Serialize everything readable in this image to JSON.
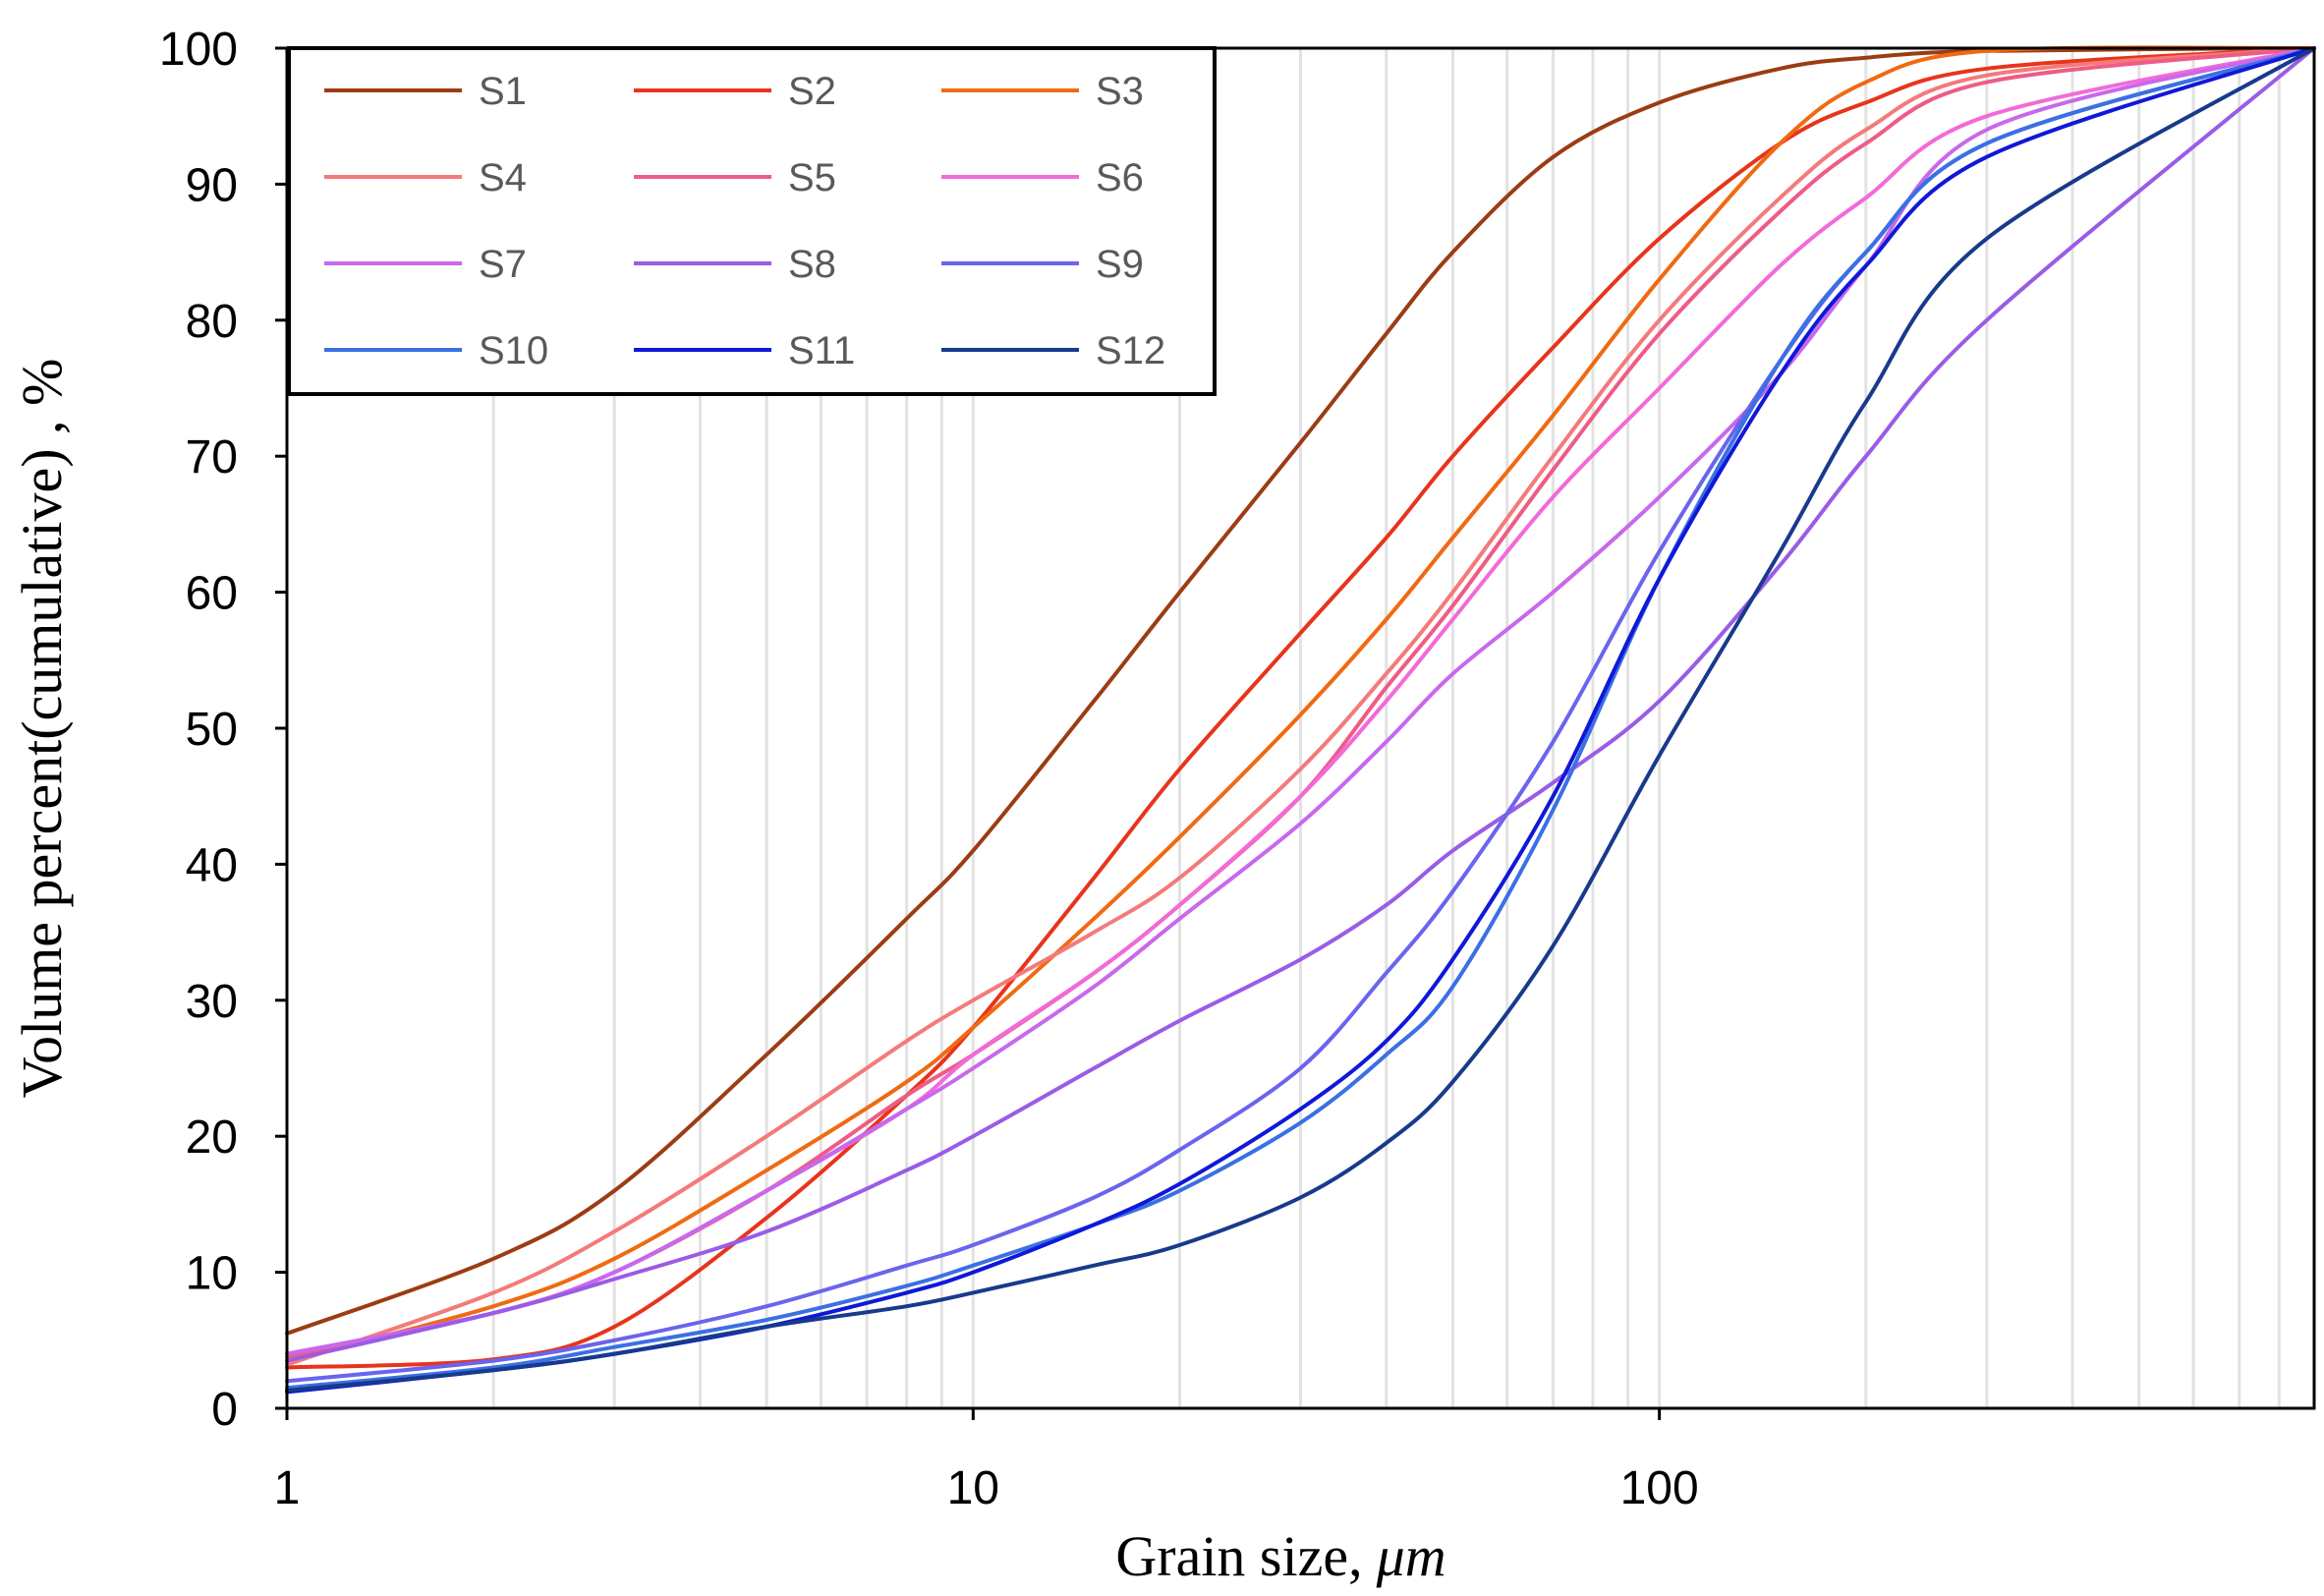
{
  "chart_data": {
    "type": "line",
    "title": "",
    "xlabel": "Grain size,",
    "xlabel_unit": "μm",
    "ylabel": "Volume percent(cumulative) , %",
    "x_scale": "log",
    "xlim": [
      1,
      900
    ],
    "ylim": [
      0,
      100
    ],
    "x_ticks": [
      1,
      10,
      100
    ],
    "x_tick_labels": [
      "1",
      "10",
      "100"
    ],
    "y_ticks": [
      0,
      10,
      20,
      30,
      40,
      50,
      60,
      70,
      80,
      90,
      100
    ],
    "y_tick_labels": [
      "0",
      "10",
      "20",
      "30",
      "40",
      "50",
      "60",
      "70",
      "80",
      "90",
      "100"
    ],
    "grid": "vertical minor gridlines",
    "legend_position": "top-left",
    "series": [
      {
        "name": "S1",
        "color": "#9c3c14",
        "x": [
          1,
          2,
          3,
          5,
          8,
          10,
          15,
          20,
          30,
          40,
          50,
          70,
          100,
          150,
          200,
          300,
          900
        ],
        "values": [
          5.5,
          11,
          16,
          26,
          36,
          41,
          52,
          60,
          71,
          79,
          85,
          92,
          96,
          98.5,
          99.3,
          99.8,
          100
        ]
      },
      {
        "name": "S2",
        "color": "#e8341c",
        "x": [
          1,
          2,
          3,
          5,
          8,
          10,
          15,
          20,
          30,
          40,
          50,
          70,
          100,
          150,
          200,
          300,
          900
        ],
        "values": [
          3,
          3.6,
          6,
          14,
          23,
          28,
          39,
          47,
          57,
          64,
          70,
          78,
          86,
          93,
          96,
          98.5,
          100
        ]
      },
      {
        "name": "S3",
        "color": "#f06a12",
        "x": [
          1,
          2,
          3,
          5,
          8,
          10,
          15,
          20,
          30,
          40,
          50,
          70,
          100,
          150,
          200,
          300,
          900
        ],
        "values": [
          3.5,
          7.5,
          11,
          17.5,
          24,
          28,
          36,
          42,
          51,
          58,
          64,
          73,
          83,
          93,
          97.5,
          99.8,
          100
        ]
      },
      {
        "name": "S4",
        "color": "#f47a7a",
        "x": [
          1,
          2,
          3,
          5,
          8,
          10,
          15,
          20,
          30,
          40,
          50,
          70,
          100,
          150,
          200,
          300,
          900
        ],
        "values": [
          3.2,
          8.5,
          13,
          20,
          27,
          30,
          35,
          39,
          47,
          54,
          60,
          70,
          80,
          89,
          94,
          98,
          100
        ]
      },
      {
        "name": "S5",
        "color": "#ee5c86",
        "x": [
          1,
          2,
          3,
          5,
          8,
          10,
          15,
          20,
          30,
          40,
          50,
          70,
          100,
          150,
          200,
          300,
          900
        ],
        "values": [
          3.8,
          7,
          10,
          16,
          23,
          26,
          32,
          37,
          45,
          53,
          59,
          69,
          79,
          88,
          93,
          97.5,
          100
        ]
      },
      {
        "name": "S6",
        "color": "#f26ad8",
        "x": [
          1,
          2,
          3,
          5,
          8,
          10,
          15,
          20,
          30,
          40,
          50,
          70,
          100,
          150,
          200,
          300,
          900
        ],
        "values": [
          4,
          7,
          10,
          16,
          22,
          26,
          32,
          37,
          45,
          52,
          58,
          67,
          75,
          84,
          89,
          95,
          100
        ]
      },
      {
        "name": "S7",
        "color": "#c868ec",
        "x": [
          1,
          2,
          3,
          5,
          8,
          10,
          15,
          20,
          30,
          40,
          50,
          70,
          100,
          150,
          200,
          300,
          900
        ],
        "values": [
          4,
          7,
          10,
          16,
          22,
          25,
          31,
          36,
          43,
          49,
          54,
          60,
          67,
          76,
          84,
          94,
          100
        ]
      },
      {
        "name": "S8",
        "color": "#9a5ce6",
        "x": [
          1,
          2,
          3,
          5,
          8,
          10,
          15,
          20,
          30,
          40,
          50,
          70,
          100,
          150,
          200,
          300,
          900
        ],
        "values": [
          3.5,
          7,
          9.5,
          13,
          17.5,
          20,
          25,
          28.5,
          33,
          37,
          41,
          46,
          52,
          62,
          70,
          80,
          100
        ]
      },
      {
        "name": "S9",
        "color": "#6a64ee",
        "x": [
          1,
          2,
          3,
          5,
          8,
          10,
          15,
          20,
          30,
          40,
          50,
          70,
          100,
          150,
          200,
          300,
          900
        ],
        "values": [
          2,
          3.5,
          5,
          7.5,
          10.5,
          12,
          15.5,
          19,
          25,
          32,
          38,
          49,
          63,
          77,
          85,
          93,
          100
        ]
      },
      {
        "name": "S10",
        "color": "#3a70e4",
        "x": [
          1,
          2,
          3,
          5,
          8,
          10,
          15,
          20,
          30,
          40,
          50,
          70,
          100,
          150,
          200,
          300,
          900
        ],
        "values": [
          1.5,
          3,
          4.5,
          6.5,
          9,
          10.5,
          13.5,
          16,
          21,
          26,
          31,
          44,
          61,
          77,
          85,
          93,
          100
        ]
      },
      {
        "name": "S11",
        "color": "#1018d8",
        "x": [
          1,
          2,
          3,
          5,
          8,
          10,
          15,
          20,
          30,
          40,
          50,
          70,
          100,
          150,
          200,
          300,
          900
        ],
        "values": [
          1.2,
          2.8,
          4,
          6,
          8.5,
          10,
          13.5,
          16.5,
          22,
          27,
          33,
          45,
          61,
          76,
          84,
          92,
          100
        ]
      },
      {
        "name": "S12",
        "color": "#173a8c",
        "x": [
          1,
          2,
          3,
          5,
          8,
          10,
          15,
          20,
          30,
          40,
          50,
          70,
          100,
          150,
          200,
          300,
          900
        ],
        "values": [
          1.3,
          2.8,
          4,
          6,
          7.5,
          8.5,
          10.5,
          12,
          15.5,
          19.5,
          24,
          34,
          48,
          63,
          74,
          86,
          100
        ]
      }
    ]
  }
}
